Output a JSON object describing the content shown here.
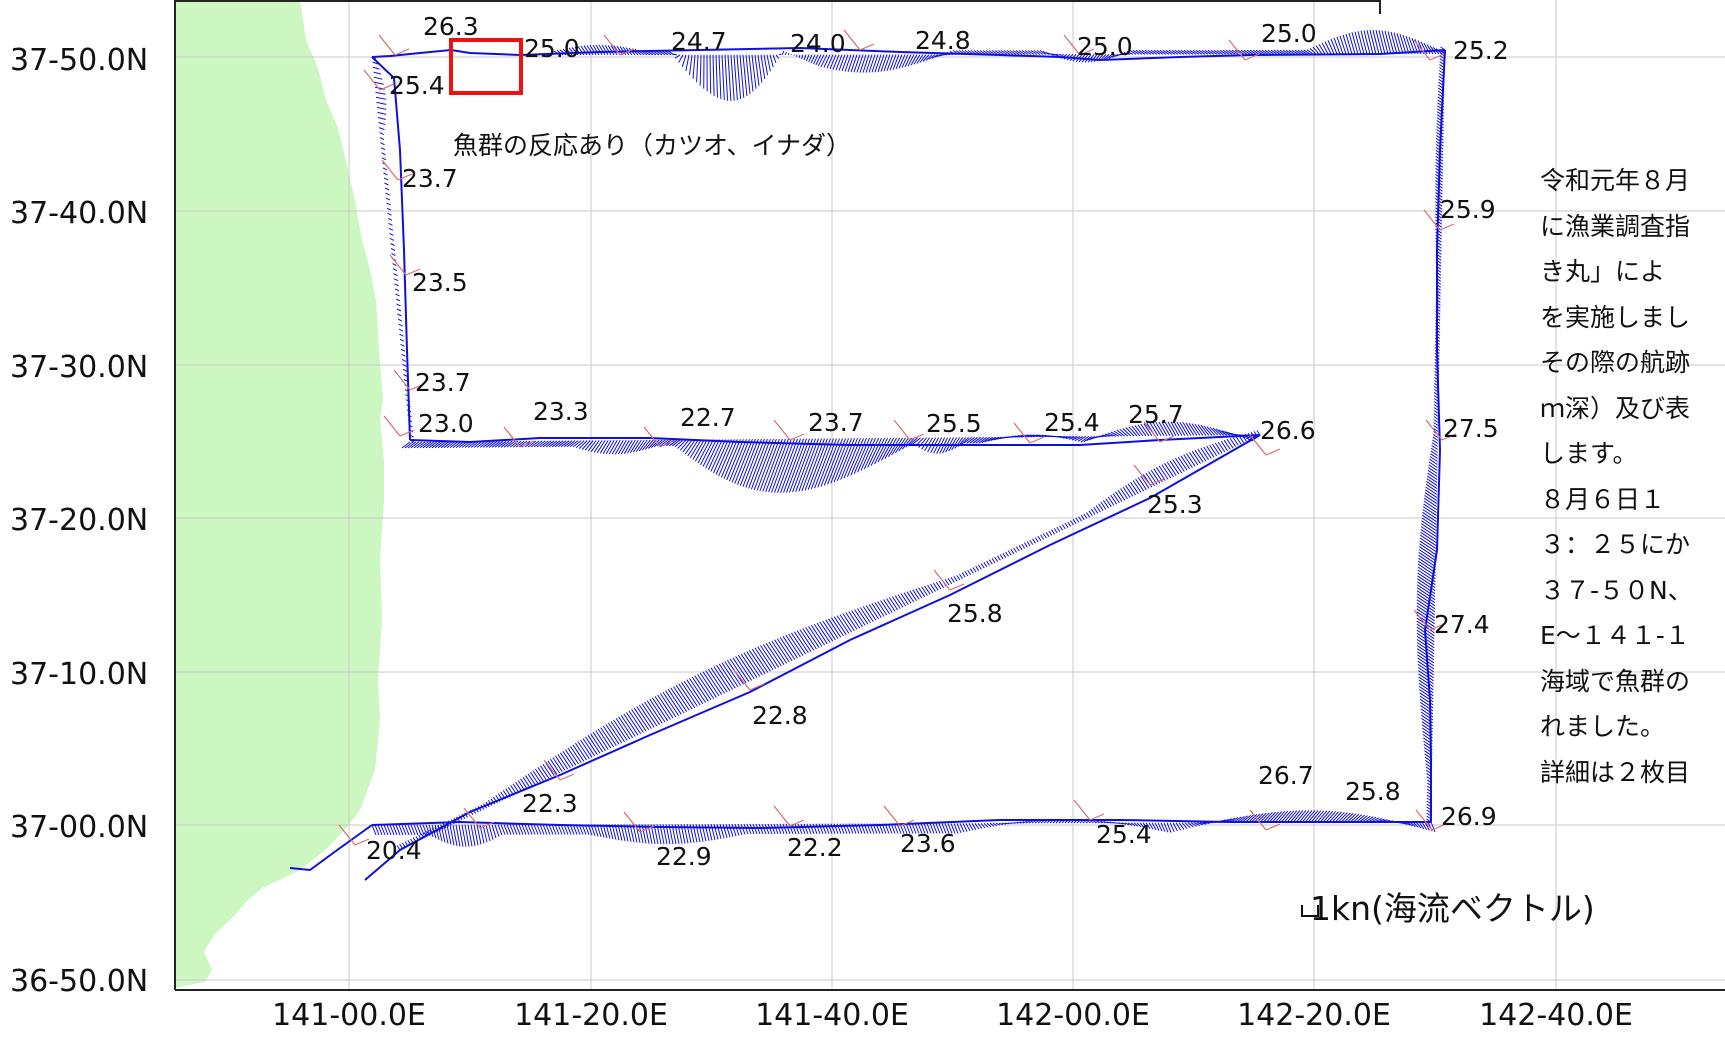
{
  "map": {
    "colors": {
      "land": "#ccf7c0",
      "vector": "#1010dd",
      "grid": "#c8c8c8",
      "highlight": "#ee1111",
      "wind_tick": "#d27070"
    },
    "lat_labels": [
      "37-50.0N",
      "37-40.0N",
      "37-30.0N",
      "37-20.0N",
      "37-10.0N",
      "37-00.0N",
      "36-50.0N"
    ],
    "lon_labels": [
      "141-00.0E",
      "141-20.0E",
      "141-40.0E",
      "142-00.0E",
      "142-20.0E",
      "142-40.0E"
    ],
    "temperatures": [
      "26.3",
      "25.0",
      "24.7",
      "24.0",
      "24.8",
      "25.0",
      "25.0",
      "25.2",
      "25.4",
      "23.7",
      "23.5",
      "23.7",
      "23.0",
      "23.3",
      "22.7",
      "23.7",
      "25.5",
      "25.4",
      "25.7",
      "26.6",
      "25.3",
      "25.8",
      "22.8",
      "25.9",
      "27.5",
      "27.4",
      "22.3",
      "20.4",
      "22.9",
      "22.2",
      "23.6",
      "25.4",
      "26.7",
      "25.8",
      "26.9"
    ],
    "annotation": "魚群の反応あり（カツオ、イナダ）",
    "scale": {
      "symbol": "⎵",
      "label": "1kn(海流ベクトル)"
    },
    "note_lines": [
      "令和元年８月",
      "に漁業調査指",
      "き丸」によ",
      "を実施しまし",
      "その際の航跡",
      "ｍ深）及び表",
      "します。",
      "８月６日１",
      "３：２５にか",
      "３７-５０N、",
      "E～１４１-１",
      "海域で魚群の",
      "れました。",
      "詳細は２枚目"
    ]
  }
}
